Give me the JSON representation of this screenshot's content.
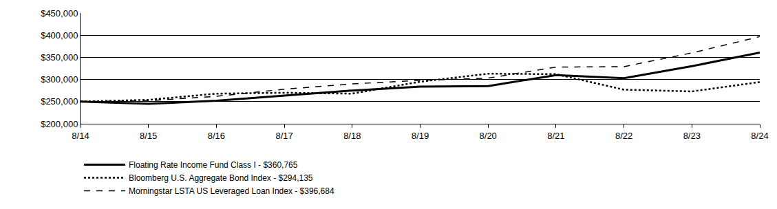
{
  "chart_data": {
    "type": "line",
    "categories": [
      "8/14",
      "8/15",
      "8/16",
      "8/17",
      "8/18",
      "8/19",
      "8/20",
      "8/21",
      "8/22",
      "8/23",
      "8/24"
    ],
    "series": [
      {
        "name": "Floating Rate Income Fund Class I - $360,765",
        "color": "#000000",
        "line_style": "solid",
        "values": [
          250000,
          245000,
          252000,
          263000,
          275000,
          284000,
          285000,
          310000,
          303000,
          330000,
          360765
        ]
      },
      {
        "name": "Bloomberg U.S. Aggregate Bond Index - $294,135",
        "color": "#000000",
        "line_style": "dot",
        "values": [
          250000,
          254000,
          268000,
          270000,
          268000,
          295000,
          313000,
          312000,
          277000,
          273000,
          294135
        ]
      },
      {
        "name": "Morningstar LSTA US Leveraged Loan Index - $396,684",
        "color": "#000000",
        "line_style": "dash",
        "values": [
          250000,
          252000,
          262000,
          278000,
          290000,
          298000,
          303000,
          328000,
          329000,
          360000,
          396684
        ]
      }
    ],
    "ylim": [
      200000,
      450000
    ],
    "yticks": [
      {
        "value": 200000,
        "label": "$200,000"
      },
      {
        "value": 250000,
        "label": "$250,000"
      },
      {
        "value": 300000,
        "label": "$300,000"
      },
      {
        "value": 350000,
        "label": "$350,000"
      },
      {
        "value": 400000,
        "label": "$400,000"
      },
      {
        "value": 450000,
        "label": "$450,000"
      }
    ],
    "grid": true,
    "legend": "bottom-left"
  }
}
